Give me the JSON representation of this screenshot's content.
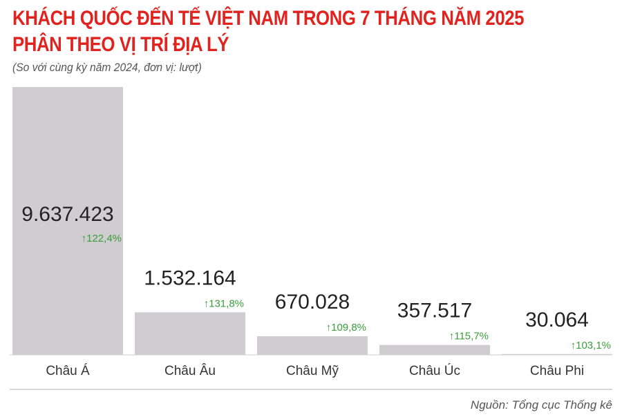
{
  "title_lines": [
    "KHÁCH QUỐC ĐẾN TẾ VIỆT NAM TRONG 7 THÁNG NĂM 2025",
    "PHÂN THEO VỊ TRÍ ĐỊA LÝ"
  ],
  "subtitle": "(So với cùng kỳ năm 2024, đơn vị: lượt)",
  "source": "Nguồn: Tổng cục Thống kê",
  "colors": {
    "title": "#e1231f",
    "bar": "#cfcdd0",
    "value_text": "#222222",
    "change_text": "#3a9d3a",
    "axis": "#cccccc"
  },
  "chart_data": {
    "type": "bar",
    "categories": [
      "Châu Á",
      "Châu Âu",
      "Châu Mỹ",
      "Châu Úc",
      "Châu Phi"
    ],
    "values": [
      9637423,
      1532164,
      670028,
      357517,
      30064
    ],
    "value_labels": [
      "9.637.423",
      "1.532.164",
      "670.028",
      "357.517",
      "30.064"
    ],
    "change_labels": [
      "122,4%",
      "131,8%",
      "109,8%",
      "115,7%",
      "103,1%"
    ],
    "ylim": [
      0,
      9637423
    ],
    "grid": false,
    "legend": "none"
  }
}
